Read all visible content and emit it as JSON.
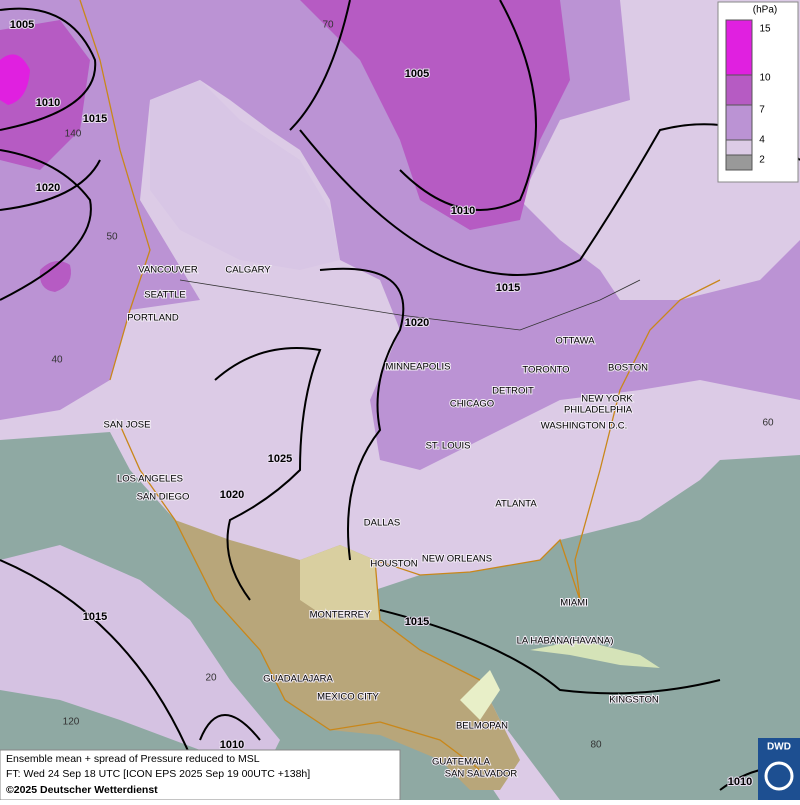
{
  "legend": {
    "unit": "(hPa)",
    "levels": [
      "15",
      "10",
      "7",
      "4",
      "2"
    ]
  },
  "isobars": [
    "1005",
    "1010",
    "1015",
    "1020",
    "1005",
    "1010",
    "1015",
    "1020",
    "1025",
    "1020",
    "1015",
    "1015",
    "1010",
    "1010"
  ],
  "cities": [
    "VANCOUVER",
    "CALGARY",
    "SEATTLE",
    "PORTLAND",
    "SAN JOSE",
    "LOS ANGELES",
    "SAN DIEGO",
    "MINNEAPOLIS",
    "DETROIT",
    "CHICAGO",
    "TORONTO",
    "OTTAWA",
    "BOSTON",
    "NEW YORK",
    "PHILADELPHIA",
    "WASHINGTON D.C.",
    "ST. LOUIS",
    "ATLANTA",
    "DALLAS",
    "HOUSTON",
    "NEW ORLEANS",
    "MIAMI",
    "MONTERREY",
    "LA HABANA(HAVANA)",
    "GUADALAJARA",
    "MEXICO CITY",
    "KINGSTON",
    "BELMOPAN",
    "GUATEMALA",
    "SAN SALVADOR"
  ],
  "grid_labels": [
    "70",
    "140",
    "50",
    "40",
    "60",
    "20",
    "120",
    "80"
  ],
  "footer": {
    "line1": "Ensemble mean + spread of Pressure reduced to MSL",
    "line2": "FT: Wed 24 Sep 18 UTC [ICON EPS 2025 Sep 19 00UTC +138h]",
    "line3": "©2025 Deutscher Wetterdienst"
  },
  "logo": "DWD"
}
